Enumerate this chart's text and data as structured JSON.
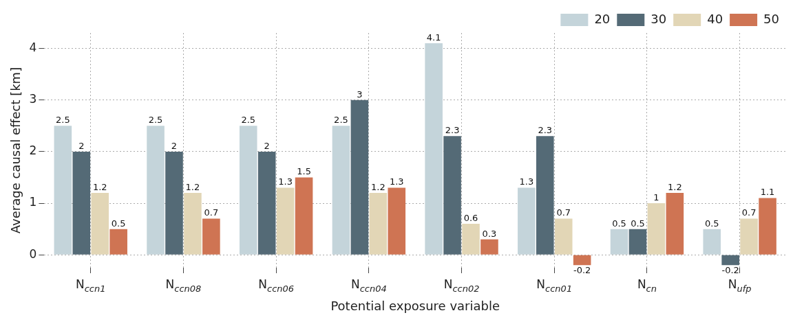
{
  "chart_data": {
    "type": "bar",
    "xlabel": "Potential exposure variable",
    "ylabel": "Average causal effect [km]",
    "categories": [
      "N$_{ccn1}$",
      "N$_{ccn08}$",
      "N$_{ccn06}$",
      "N$_{ccn04}$",
      "N$_{ccn02}$",
      "N$_{ccn01}$",
      "N$_{cn}$",
      "N$_{ufp}$"
    ],
    "series": [
      {
        "name": "20",
        "color": "#c4d4da",
        "values": [
          2.5,
          2.5,
          2.5,
          2.5,
          4.1,
          1.3,
          0.5,
          0.5
        ]
      },
      {
        "name": "30",
        "color": "#546a76",
        "values": [
          2,
          2,
          2,
          3,
          2.3,
          2.3,
          0.5,
          -0.2
        ]
      },
      {
        "name": "40",
        "color": "#e2d6b6",
        "values": [
          1.2,
          1.2,
          1.3,
          1.2,
          0.6,
          0.7,
          1,
          0.7
        ]
      },
      {
        "name": "50",
        "color": "#cf7453",
        "values": [
          0.5,
          0.7,
          1.5,
          1.3,
          0.3,
          -0.2,
          1.2,
          1.1
        ]
      }
    ],
    "ylim": [
      -0.25,
      4.3
    ],
    "yticks": [
      0,
      1,
      2,
      3,
      4
    ],
    "grid": true,
    "legend": "top right",
    "data_labels": true
  }
}
